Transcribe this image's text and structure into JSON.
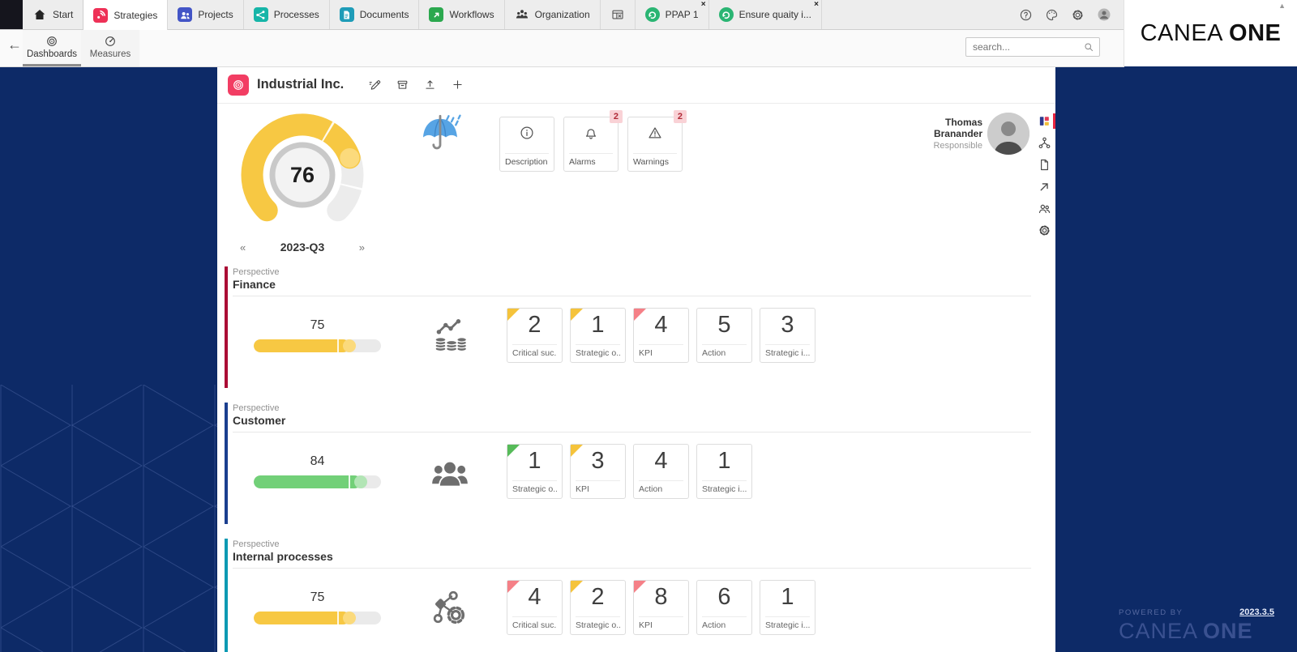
{
  "brand": {
    "name_a": "CANEA",
    "name_b": "ONE",
    "caret": "▲"
  },
  "top_nav": {
    "modules": [
      {
        "label": "Start",
        "icon": "home"
      },
      {
        "label": "Strategies",
        "icon": "strategies",
        "icon_bg": "#ee3157",
        "active": true
      },
      {
        "label": "Projects",
        "icon": "projects",
        "icon_bg": "#4355c6"
      },
      {
        "label": "Processes",
        "icon": "processes",
        "icon_bg": "#16b5a8"
      },
      {
        "label": "Documents",
        "icon": "documents",
        "icon_bg": "#1e9cb8"
      },
      {
        "label": "Workflows",
        "icon": "workflows",
        "icon_bg": "#2ba84e"
      },
      {
        "label": "Organization",
        "icon": "organization"
      },
      {
        "label": "",
        "icon": "windowx"
      },
      {
        "label": "PPAP 1",
        "icon": "swirl",
        "icon_bg": "#2ab573",
        "icon_round": true,
        "closable": true
      },
      {
        "label": "Ensure quaity i...",
        "icon": "swirl",
        "icon_bg": "#2ab573",
        "icon_round": true,
        "closable": true
      }
    ],
    "close_glyph": "×",
    "utility_icons": [
      "help",
      "palette",
      "gear",
      "profile"
    ]
  },
  "sub_nav": {
    "back_glyph": "←",
    "tabs": [
      {
        "label": "Dashboards",
        "icon": "target2",
        "active": true
      },
      {
        "label": "Measures",
        "icon": "speedo"
      }
    ],
    "search": {
      "placeholder": "search..."
    }
  },
  "dashboard": {
    "title": "Industrial Inc.",
    "header_actions": [
      "edit",
      "archive",
      "upload",
      "plus"
    ],
    "gauge": {
      "value": 76,
      "period": "2023-Q3",
      "prev_glyph": "«",
      "next_glyph": "»",
      "color": "#f7c843",
      "knob_color": "#fbda7c",
      "track_color": "#ececec"
    },
    "weather_icon": "umbrella-rain",
    "info_cards": [
      {
        "label": "Description",
        "icon": "info"
      },
      {
        "label": "Alarms",
        "icon": "bell",
        "badge": "2"
      },
      {
        "label": "Warnings",
        "icon": "warning",
        "badge": "2"
      }
    ],
    "responsible": {
      "name": "Thomas Branander",
      "role": "Responsible"
    },
    "side_rail": [
      "dashcol",
      "hier",
      "doc2",
      "arr2",
      "users2",
      "gear2"
    ],
    "perspectives": [
      {
        "kicker": "Perspective",
        "name": "Finance",
        "accent": "#ab0c35",
        "score": 75,
        "bar_color": "#f7c843",
        "knob_color": "#fbda7c",
        "icon": "finance",
        "cards": [
          {
            "value": "2",
            "label": "Critical suc...",
            "flag": "#f5c33b"
          },
          {
            "value": "1",
            "label": "Strategic o...",
            "flag": "#f5c33b"
          },
          {
            "value": "4",
            "label": "KPI",
            "flag": "#f58087"
          },
          {
            "value": "5",
            "label": "Action"
          },
          {
            "value": "3",
            "label": "Strategic i..."
          }
        ]
      },
      {
        "kicker": "Perspective",
        "name": "Customer",
        "accent": "#1b3f8f",
        "score": 84,
        "bar_color": "#72d078",
        "knob_color": "#b2e5b5",
        "icon": "customers",
        "cards": [
          {
            "value": "1",
            "label": "Strategic o...",
            "flag": "#56bb59"
          },
          {
            "value": "3",
            "label": "KPI",
            "flag": "#f5c33b"
          },
          {
            "value": "4",
            "label": "Action"
          },
          {
            "value": "1",
            "label": "Strategic i..."
          }
        ]
      },
      {
        "kicker": "Perspective",
        "name": "Internal processes",
        "accent": "#0d9ab3",
        "score": 75,
        "bar_color": "#f7c843",
        "knob_color": "#fbda7c",
        "icon": "sharegear",
        "cards": [
          {
            "value": "4",
            "label": "Critical suc...",
            "flag": "#f58087"
          },
          {
            "value": "2",
            "label": "Strategic o...",
            "flag": "#f5c33b"
          },
          {
            "value": "8",
            "label": "KPI",
            "flag": "#f58087"
          },
          {
            "value": "6",
            "label": "Action"
          },
          {
            "value": "1",
            "label": "Strategic i..."
          }
        ]
      }
    ]
  },
  "footer": {
    "powered_by": "POWERED BY",
    "brand_a": "CANEA",
    "brand_b": "ONE",
    "version": "2023.3.5"
  }
}
